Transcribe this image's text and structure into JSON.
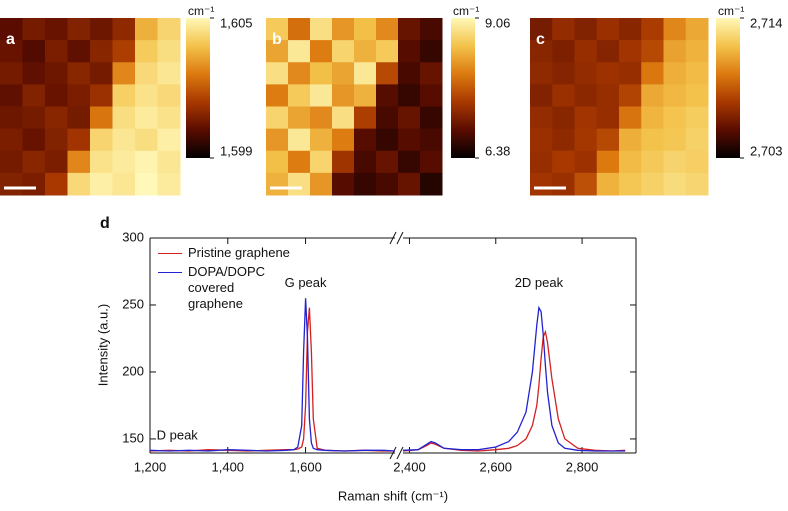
{
  "chart_data": [
    {
      "type": "heatmap",
      "panel": "a",
      "colorbar_label": "cm⁻¹",
      "colormap": [
        "#000000",
        "#5a0c00",
        "#a83800",
        "#dc7a10",
        "#f3c24a",
        "#fff8b8"
      ],
      "zlim": [
        1599,
        1605
      ],
      "colorbar_ticks": [
        {
          "value": 1605,
          "label": "1,605"
        },
        {
          "value": 1599,
          "label": "1,599"
        }
      ],
      "values": [
        [
          1600.2,
          1600.6,
          1600.4,
          1600.8,
          1600.5,
          1601.0,
          1603.5,
          1604.2
        ],
        [
          1600.4,
          1600.1,
          1600.7,
          1600.3,
          1600.9,
          1601.5,
          1604.0,
          1604.4
        ],
        [
          1600.6,
          1600.3,
          1600.5,
          1600.9,
          1600.6,
          1602.8,
          1604.3,
          1604.6
        ],
        [
          1600.3,
          1600.8,
          1600.4,
          1600.7,
          1601.2,
          1604.1,
          1604.5,
          1604.3
        ],
        [
          1600.5,
          1600.6,
          1600.9,
          1600.6,
          1602.5,
          1604.4,
          1604.7,
          1604.5
        ],
        [
          1600.7,
          1600.4,
          1600.8,
          1601.3,
          1604.2,
          1604.6,
          1604.4,
          1604.8
        ],
        [
          1600.6,
          1600.9,
          1600.7,
          1602.8,
          1604.5,
          1604.7,
          1604.9,
          1604.6
        ],
        [
          1600.8,
          1600.7,
          1601.4,
          1604.3,
          1604.8,
          1604.6,
          1605.0,
          1604.7
        ]
      ]
    },
    {
      "type": "heatmap",
      "panel": "b",
      "colorbar_label": "cm⁻¹",
      "colormap": [
        "#000000",
        "#5a0c00",
        "#a83800",
        "#dc7a10",
        "#f3c24a",
        "#fff8b8"
      ],
      "zlim": [
        6.38,
        9.06
      ],
      "colorbar_ticks": [
        9.06,
        6.38
      ],
      "values": [
        [
          8.6,
          7.9,
          8.8,
          8.2,
          8.5,
          8.1,
          7.0,
          6.8
        ],
        [
          8.3,
          8.9,
          8.0,
          8.7,
          8.4,
          8.6,
          6.9,
          6.7
        ],
        [
          8.8,
          8.1,
          8.5,
          8.3,
          8.9,
          7.6,
          6.8,
          7.0
        ],
        [
          8.0,
          8.6,
          8.9,
          8.2,
          8.4,
          6.9,
          6.7,
          6.9
        ],
        [
          8.7,
          8.3,
          8.1,
          8.8,
          7.5,
          6.8,
          7.0,
          6.7
        ],
        [
          8.2,
          8.9,
          8.4,
          8.0,
          6.9,
          6.7,
          6.9,
          6.8
        ],
        [
          8.5,
          8.0,
          8.7,
          7.4,
          6.8,
          7.0,
          6.7,
          6.9
        ],
        [
          8.4,
          8.8,
          8.2,
          6.9,
          6.7,
          6.8,
          7.0,
          6.6
        ]
      ]
    },
    {
      "type": "heatmap",
      "panel": "c",
      "colorbar_label": "cm⁻¹",
      "colormap": [
        "#000000",
        "#5a0c00",
        "#a83800",
        "#dc7a10",
        "#f3c24a",
        "#fff8b8"
      ],
      "zlim": [
        2703,
        2714
      ],
      "colorbar_ticks": [
        {
          "value": 2714,
          "label": "2,714"
        },
        {
          "value": 2703,
          "label": "2,703"
        }
      ],
      "values": [
        [
          2706.0,
          2706.8,
          2706.3,
          2707.0,
          2706.5,
          2707.5,
          2710.0,
          2711.0
        ],
        [
          2706.5,
          2706.2,
          2706.9,
          2706.4,
          2707.2,
          2708.0,
          2710.8,
          2711.3
        ],
        [
          2706.7,
          2706.4,
          2706.8,
          2707.1,
          2706.9,
          2709.5,
          2711.2,
          2711.6
        ],
        [
          2706.3,
          2707.0,
          2706.6,
          2706.9,
          2707.8,
          2711.0,
          2711.5,
          2711.8
        ],
        [
          2706.8,
          2706.5,
          2707.2,
          2706.9,
          2709.4,
          2711.4,
          2711.9,
          2712.2
        ],
        [
          2707.0,
          2706.7,
          2707.3,
          2708.0,
          2711.2,
          2711.8,
          2712.0,
          2712.4
        ],
        [
          2706.9,
          2707.4,
          2707.1,
          2709.6,
          2711.6,
          2712.1,
          2712.5,
          2712.3
        ],
        [
          2707.2,
          2707.0,
          2708.2,
          2711.3,
          2712.0,
          2712.4,
          2712.8,
          2712.6
        ]
      ]
    },
    {
      "type": "line",
      "panel": "d",
      "xlabel": "Raman shift (cm⁻¹)",
      "ylabel": "Intensity (a.u.)",
      "xlim": [
        [
          1200,
          1830
        ],
        [
          2385,
          2925
        ]
      ],
      "axis_break": true,
      "ylim": [
        139.5,
        300
      ],
      "xticks": [
        {
          "value": 1200,
          "label": "1,200"
        },
        {
          "value": 1400,
          "label": "1,400"
        },
        {
          "value": 1600,
          "label": "1,600"
        },
        {
          "value": 2400,
          "label": "2,400"
        },
        {
          "value": 2600,
          "label": "2,600"
        },
        {
          "value": 2800,
          "label": "2,800"
        }
      ],
      "yticks": [
        150,
        200,
        250,
        300
      ],
      "legend": "top-left",
      "annotations": [
        {
          "text": "D peak",
          "x": 1270,
          "y": 152
        },
        {
          "text": "G peak",
          "x": 1600,
          "y": 266
        },
        {
          "text": "2D peak",
          "x": 2700,
          "y": 266
        }
      ],
      "x": [
        1200,
        1250,
        1300,
        1350,
        1400,
        1450,
        1500,
        1550,
        1570,
        1580,
        1590,
        1595,
        1600,
        1605,
        1610,
        1615,
        1620,
        1630,
        1650,
        1700,
        1750,
        1800,
        1830,
        2385,
        2420,
        2440,
        2450,
        2460,
        2480,
        2520,
        2560,
        2600,
        2630,
        2650,
        2670,
        2685,
        2695,
        2700,
        2705,
        2710,
        2715,
        2720,
        2730,
        2745,
        2760,
        2790,
        2830,
        2870,
        2900
      ],
      "series": [
        {
          "name": "Pristine graphene",
          "color": "#d42020",
          "values": [
            141,
            141.5,
            141,
            142,
            141.5,
            141,
            141.5,
            142,
            142,
            142.5,
            144,
            150,
            175,
            230,
            248,
            215,
            165,
            143,
            141.5,
            141,
            141.5,
            141,
            141,
            141,
            142,
            145,
            147,
            146,
            143,
            141.5,
            141,
            142,
            143,
            145,
            150,
            160,
            175,
            190,
            210,
            226,
            230,
            222,
            195,
            165,
            150,
            143,
            141.5,
            141,
            141.5
          ]
        },
        {
          "name": "DOPA/DOPC covered graphene",
          "color": "#2222d0",
          "values": [
            141.5,
            141,
            141.5,
            141,
            142,
            141.5,
            141,
            141.5,
            142,
            144,
            160,
            215,
            255,
            225,
            165,
            147,
            143,
            142,
            141.5,
            141,
            141.5,
            141.5,
            141,
            141.5,
            142,
            146,
            148,
            147,
            143,
            142,
            142,
            144,
            148,
            155,
            170,
            200,
            235,
            248,
            245,
            228,
            205,
            185,
            160,
            147,
            143,
            141.5,
            141,
            141,
            141
          ]
        }
      ]
    }
  ]
}
